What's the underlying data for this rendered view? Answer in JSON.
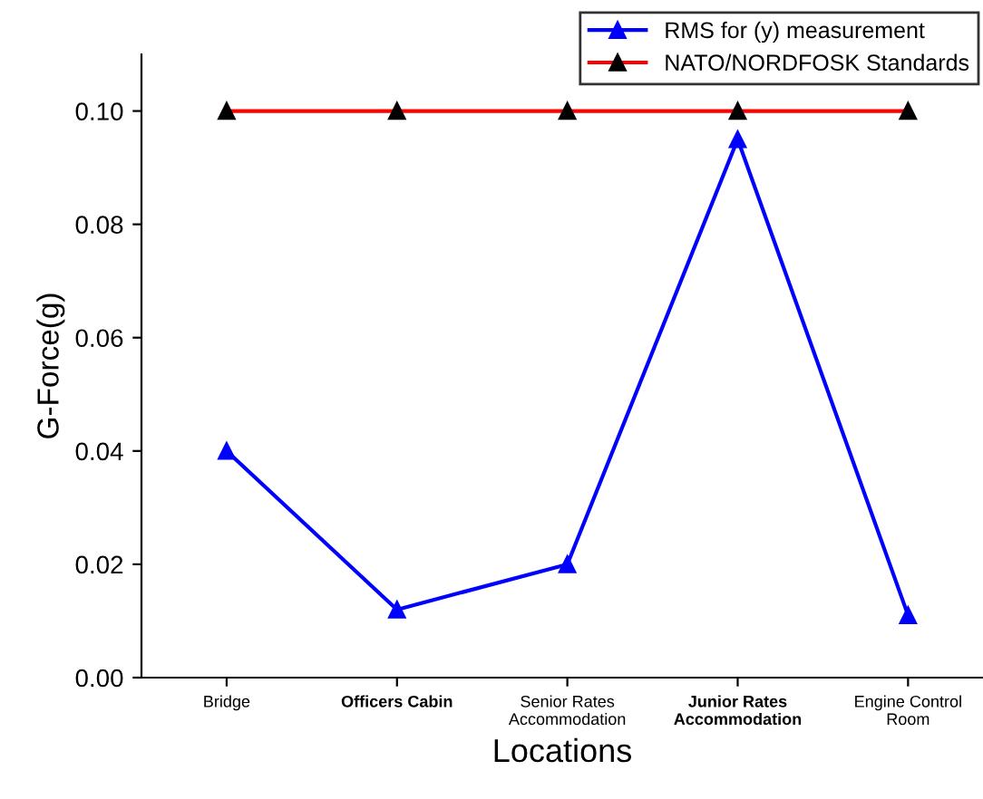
{
  "chart_data": {
    "type": "line",
    "xlabel": "Locations",
    "ylabel": "G-Force(g)",
    "categories": [
      "Bridge",
      "Officers Cabin",
      "Senior Rates\nAccommodation",
      "Junior Rates\nAccommodation",
      "Engine Control\nRoom"
    ],
    "series": [
      {
        "name": "RMS for (y) measurement",
        "color": "#0000ff",
        "values": [
          0.04,
          0.012,
          0.02,
          0.095,
          0.011
        ]
      },
      {
        "name": "NATO/NORDFOSK Standards",
        "color": "#ff0000",
        "values": [
          0.1,
          0.1,
          0.1,
          0.1,
          0.1
        ]
      }
    ],
    "ylim": [
      0,
      0.11
    ],
    "yticks": [
      {
        "value": 0,
        "label": "0.00"
      },
      {
        "value": 0.02,
        "label": "0.02"
      },
      {
        "value": 0.04,
        "label": "0.04"
      },
      {
        "value": 0.06,
        "label": "0.06"
      },
      {
        "value": 0.08,
        "label": "0.08"
      },
      {
        "value": 0.1,
        "label": "0.10"
      }
    ],
    "marker": "triangle",
    "line_style": "solid",
    "legend": "top right",
    "grid": false
  }
}
